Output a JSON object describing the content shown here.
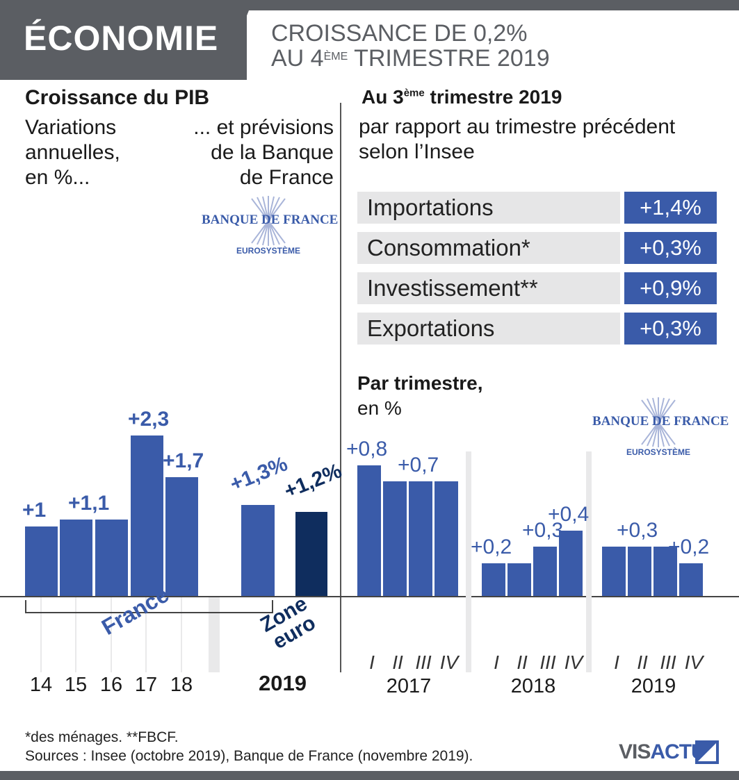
{
  "header": {
    "tag": "ÉCONOMIE",
    "title_line1": "CROISSANCE DE 0,2%",
    "title_line2_a": "AU 4",
    "title_line2_sup": "ÈME",
    "title_line2_b": " TRIMESTRE 2019"
  },
  "left_panel": {
    "title": "Croissance du PIB",
    "sub_left": [
      "Variations",
      "annuelles,",
      "en %..."
    ],
    "sub_right": [
      "... et prévisions",
      "de la Banque",
      "de France"
    ],
    "logo": {
      "name": "BANQUE DE FRANCE",
      "sub": "EUROSYSTÈME"
    },
    "group_labels": {
      "france": "France",
      "zone_line1": "Zone",
      "zone_line2": "euro"
    },
    "year_label_2019": "2019"
  },
  "right_panel": {
    "title_a": "Au 3",
    "title_sup": "ème",
    "title_b": " trimestre 2019",
    "sub_line1": "par rapport au trimestre précédent",
    "sub_line2": "selon l’Insee",
    "components": [
      {
        "label": "Importations",
        "value": "+1,4%"
      },
      {
        "label": "Consommation*",
        "value": "+0,3%"
      },
      {
        "label": "Investissement**",
        "value": "+0,9%"
      },
      {
        "label": "Exportations",
        "value": "+0,3%"
      }
    ],
    "quarter_title": "Par trimestre,",
    "quarter_sub": "en %",
    "logo": {
      "name": "BANQUE DE FRANCE",
      "sub": "EUROSYSTÈME"
    }
  },
  "chart_data": [
    {
      "type": "bar",
      "title": "Croissance du PIB",
      "categories": [
        "14",
        "15",
        "16",
        "17",
        "18",
        "2019 France",
        "2019 Zone euro"
      ],
      "values": [
        1.0,
        1.1,
        1.1,
        2.3,
        1.7,
        1.3,
        1.2
      ],
      "labels": [
        "+1",
        "+1,1",
        "",
        "+2,3",
        "+1,7",
        "+1,3%",
        "+1,2%"
      ],
      "colors": [
        "#3a5ba9",
        "#3a5ba9",
        "#3a5ba9",
        "#3a5ba9",
        "#3a5ba9",
        "#3a5ba9",
        "#0f2d5e"
      ],
      "ylim": [
        0,
        2.3
      ]
    },
    {
      "type": "bar",
      "title": "Par trimestre,",
      "groups": [
        {
          "year": "2017",
          "quarters": [
            "I",
            "II",
            "III",
            "IV"
          ],
          "values": [
            0.8,
            0.7,
            0.7,
            0.7
          ],
          "labels": [
            "+0,8",
            "",
            "+0,7",
            ""
          ]
        },
        {
          "year": "2018",
          "quarters": [
            "I",
            "II",
            "III",
            "IV"
          ],
          "values": [
            0.2,
            0.2,
            0.3,
            0.4
          ],
          "labels": [
            "+0,2",
            "",
            "+0,3",
            "+0,4"
          ]
        },
        {
          "year": "2019",
          "quarters": [
            "I",
            "II",
            "III",
            "IV"
          ],
          "values": [
            0.3,
            0.3,
            0.3,
            0.2
          ],
          "labels": [
            "",
            "+0,3",
            "",
            "+0,2"
          ]
        }
      ],
      "ylim": [
        0,
        0.8
      ]
    }
  ],
  "footer": {
    "note": "*des ménages. **FBCF.",
    "sources": "Sources : Insee (octobre 2019), Banque de France (novembre 2019).",
    "brand_a": "VIS",
    "brand_b": "ACTU"
  },
  "colors": {
    "bar": "#3a5ba9",
    "bar_dark": "#0f2d5e",
    "header": "#5b5e63",
    "band": "#e6e6e7"
  }
}
